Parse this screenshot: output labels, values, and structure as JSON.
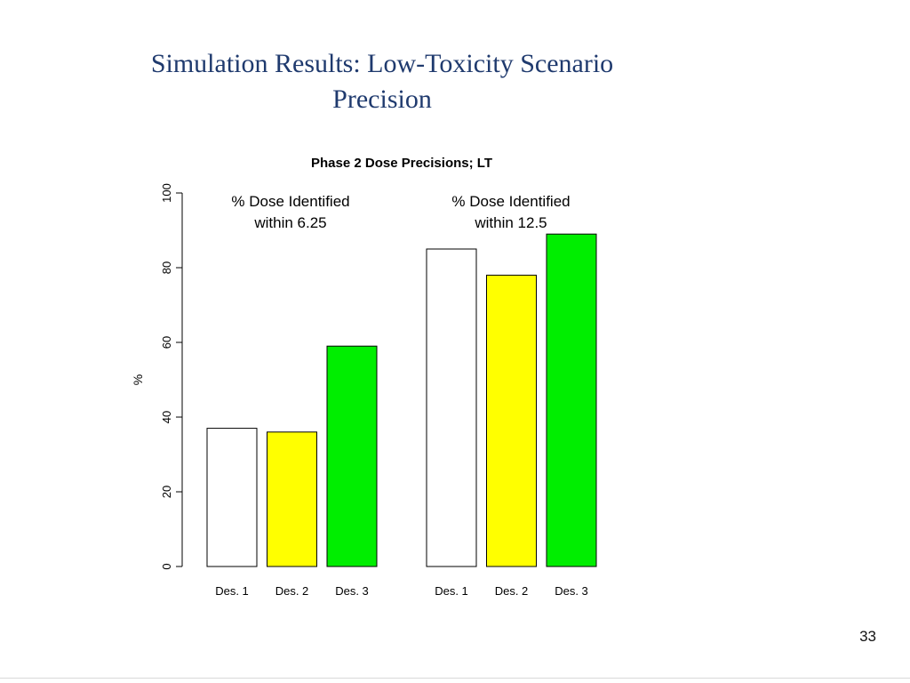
{
  "slide": {
    "title_line1": "Simulation Results: Low-Toxicity Scenario",
    "title_line2": "Precision",
    "page_number": "33"
  },
  "chart_data": {
    "type": "bar",
    "title": "Phase 2 Dose Precisions; LT",
    "xlabel": "",
    "ylabel": "%",
    "ylim": [
      0,
      100
    ],
    "yticks": [
      0,
      20,
      40,
      60,
      80,
      100
    ],
    "grid": false,
    "groups": [
      {
        "label": "% Dose Identified within 6.25",
        "label_lines": [
          "% Dose Identified",
          "within 6.25"
        ],
        "categories": [
          "Des. 1",
          "Des. 2",
          "Des. 3"
        ],
        "values": [
          37,
          36,
          59
        ],
        "colors": [
          "#ffffff",
          "#ffff00",
          "#00ee00"
        ]
      },
      {
        "label": "% Dose Identified within 12.5",
        "label_lines": [
          "% Dose Identified",
          "within 12.5"
        ],
        "categories": [
          "Des. 1",
          "Des. 2",
          "Des. 3"
        ],
        "values": [
          85,
          78,
          89
        ],
        "colors": [
          "#ffffff",
          "#ffff00",
          "#00ee00"
        ]
      }
    ]
  }
}
